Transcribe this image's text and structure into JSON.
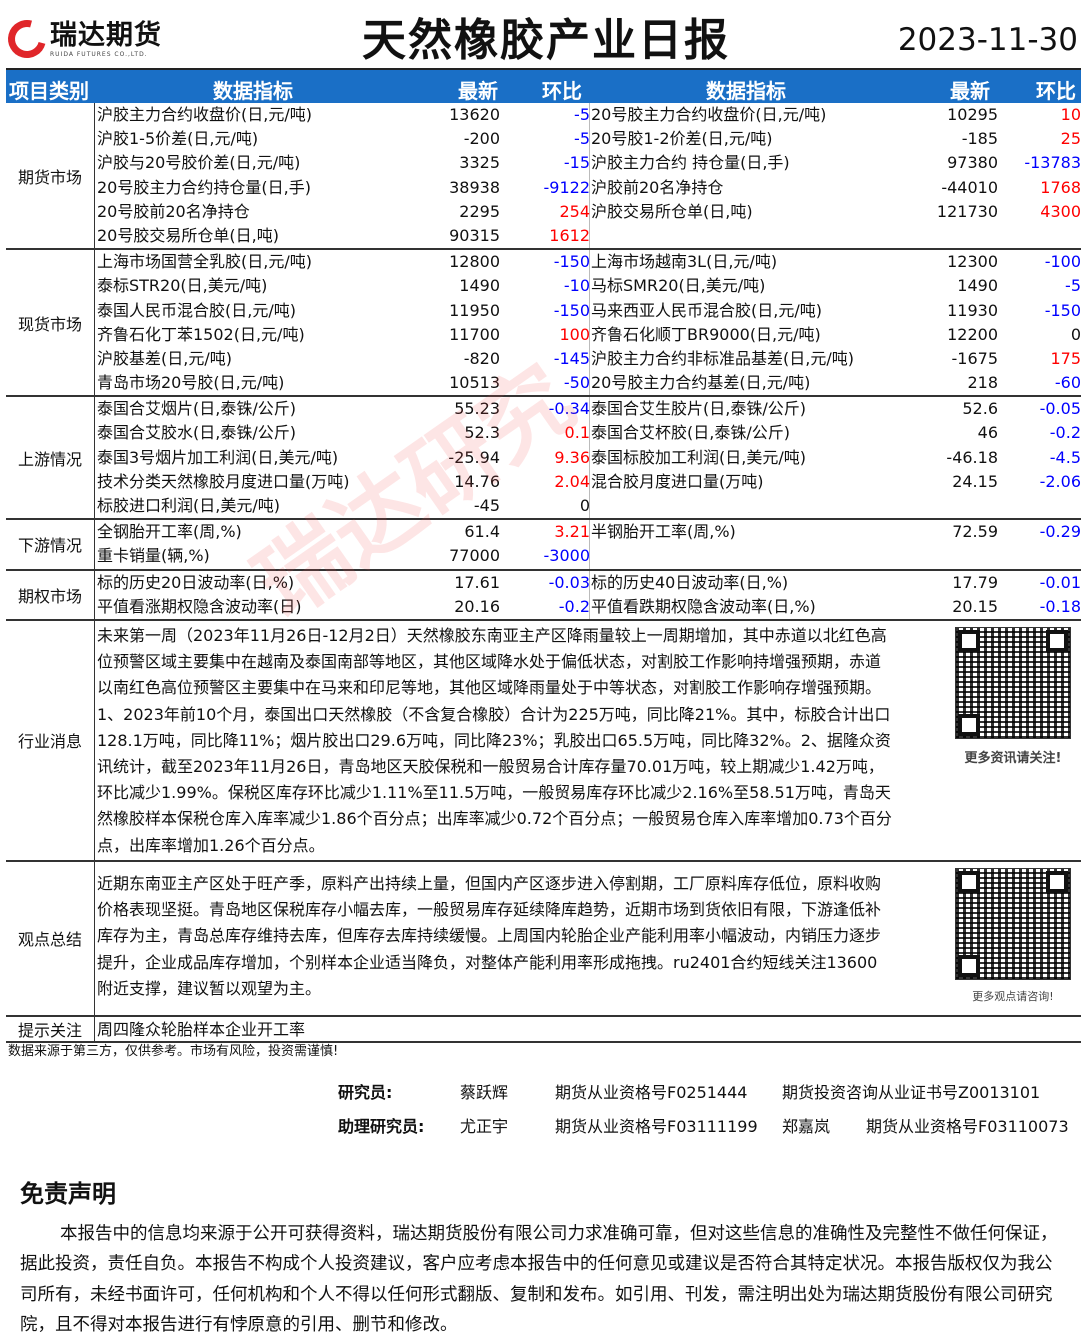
{
  "header": {
    "logo_cn": "瑞达期货",
    "logo_en": "RUIDA FUTURES CO.,LTD.",
    "title": "天然橡胶产业日报",
    "date": "2023-11-30"
  },
  "columns": {
    "category": "项目类别",
    "indicator": "数据指标",
    "latest": "最新",
    "change": "环比"
  },
  "colors": {
    "header_bg": "#1a6fc6",
    "up": "#ff0000",
    "down": "#0000ff"
  },
  "sections": [
    {
      "category": "期货市场",
      "rows": [
        [
          "沪胶主力合约收盘价(日,元/吨)",
          "13620",
          "-5",
          "20号胶主力合约收盘价(日,元/吨)",
          "10295",
          "10"
        ],
        [
          "沪胶1-5价差(日,元/吨)",
          "-200",
          "-5",
          "20号胶1-2价差(日,元/吨)",
          "-185",
          "25"
        ],
        [
          "沪胶与20号胶价差(日,元/吨)",
          "3325",
          "-15",
          "沪胶主力合约 持仓量(日,手)",
          "97380",
          "-13783"
        ],
        [
          "20号胶主力合约持仓量(日,手)",
          "38938",
          "-9122",
          "沪胶前20名净持仓",
          "-44010",
          "1768"
        ],
        [
          "20号胶前20名净持仓",
          "2295",
          "254",
          "沪胶交易所仓单(日,吨)",
          "121730",
          "4300"
        ],
        [
          "20号胶交易所仓单(日,吨)",
          "90315",
          "1612",
          "",
          "",
          ""
        ]
      ]
    },
    {
      "category": "现货市场",
      "rows": [
        [
          "上海市场国营全乳胶(日,元/吨)",
          "12800",
          "-150",
          "上海市场越南3L(日,元/吨)",
          "12300",
          "-100"
        ],
        [
          "泰标STR20(日,美元/吨)",
          "1490",
          "-10",
          "马标SMR20(日,美元/吨)",
          "1490",
          "-5"
        ],
        [
          "泰国人民币混合胶(日,元/吨)",
          "11950",
          "-150",
          "马来西亚人民币混合胶(日,元/吨)",
          "11930",
          "-150"
        ],
        [
          "齐鲁石化丁苯1502(日,元/吨)",
          "11700",
          "100",
          "齐鲁石化顺丁BR9000(日,元/吨)",
          "12200",
          "0"
        ],
        [
          "沪胶基差(日,元/吨)",
          "-820",
          "-145",
          "沪胶主力合约非标准品基差(日,元/吨)",
          "-1675",
          "175"
        ],
        [
          "青岛市场20号胶(日,元/吨)",
          "10513",
          "-50",
          "20号胶主力合约基差(日,元/吨)",
          "218",
          "-60"
        ]
      ]
    },
    {
      "category": "上游情况",
      "rows": [
        [
          "泰国合艾烟片(日,泰铢/公斤)",
          "55.23",
          "-0.34",
          "泰国合艾生胶片(日,泰铢/公斤)",
          "52.6",
          "-0.05"
        ],
        [
          "泰国合艾胶水(日,泰铢/公斤)",
          "52.3",
          "0.1",
          "泰国合艾杯胶(日,泰铢/公斤)",
          "46",
          "-0.2"
        ],
        [
          "泰国3号烟片加工利润(日,美元/吨)",
          "-25.94",
          "9.36",
          "泰国标胶加工利润(日,美元/吨)",
          "-46.18",
          "-4.5"
        ],
        [
          "技术分类天然橡胶月度进口量(万吨)",
          "14.76",
          "2.04",
          "混合胶月度进口量(万吨)",
          "24.15",
          "-2.06"
        ],
        [
          "标胶进口利润(日,美元/吨)",
          "-45",
          "0",
          "",
          "",
          ""
        ]
      ]
    },
    {
      "category": "下游情况",
      "rows": [
        [
          "全钢胎开工率(周,%)",
          "61.4",
          "3.21",
          "半钢胎开工率(周,%)",
          "72.59",
          "-0.29"
        ],
        [
          "重卡销量(辆,%)",
          "77000",
          "-3000",
          "",
          "",
          ""
        ]
      ]
    },
    {
      "category": "期权市场",
      "rows": [
        [
          "标的历史20日波动率(日,%)",
          "17.61",
          "-0.03",
          "标的历史40日波动率(日,%)",
          "17.79",
          "-0.01"
        ],
        [
          "平值看涨期权隐含波动率(日)",
          "20.16",
          "-0.2",
          "平值看跌期权隐含波动率(日,%)",
          "20.15",
          "-0.18"
        ]
      ]
    }
  ],
  "news": {
    "category": "行业消息",
    "text": "未来第一周（2023年11月26日-12月2日）天然橡胶东南亚主产区降雨量较上一周期增加，其中赤道以北红色高位预警区域主要集中在越南及泰国南部等地区，其他区域降水处于偏低状态，对割胶工作影响持增强预期，赤道以南红色高位预警区主要集中在马来和印尼等地，其他区域降雨量处于中等状态，对割胶工作影响存增强预期。1、2023年前10个月，泰国出口天然橡胶（不含复合橡胶）合计为225万吨，同比降21%。其中，标胶合计出口128.1万吨，同比降11%；烟片胶出口29.6万吨，同比降23%；乳胶出口65.5万吨，同比降32%。2、据隆众资讯统计，截至2023年11月26日，青岛地区天胶保税和一般贸易合计库存量70.01万吨，较上期减少1.42万吨，环比减少1.99%。保税区库存环比减少1.11%至11.5万吨，一般贸易库存环比减少2.16%至58.51万吨，青岛天然橡胶样本保税仓库入库率减少1.86个百分点；出库率减少0.72个百分点；一般贸易仓库入库率增加0.73个百分点，出库率增加1.26个百分点。",
    "qr_caption": "更多资讯请关注!"
  },
  "view": {
    "category": "观点总结",
    "text": "近期东南亚主产区处于旺产季，原料产出持续上量，但国内产区逐步进入停割期，工厂原料库存低位，原料收购价格表现坚挺。青岛地区保税库存小幅去库，一般贸易库存延续降库趋势，近期市场到货依旧有限，下游逢低补库存为主，青岛总库存维持去库，但库存去库持续缓慢。上周国内轮胎企业产能利用率小幅波动，内销压力逐步提升，企业成品库存增加，个别样本企业适当降负，对整体产能利用率形成拖拽。ru2401合约短线关注13600附近支撑，建议暂以观望为主。",
    "qr_caption": "更多观点请咨询!"
  },
  "tips": {
    "category": "提示关注",
    "text": "周四隆众轮胎样本企业开工率"
  },
  "source_note": "数据来源于第三方，仅供参考。市场有风险，投资需谨慎!",
  "staff": {
    "researcher_label": "研究员:",
    "researcher": "蔡跃辉",
    "researcher_cert": "期货从业资格号F0251444",
    "researcher_consult": "期货投资咨询从业证书号Z0013101",
    "assistant_label": "助理研究员:",
    "assistant1": "尤正宇",
    "assistant1_cert": "期货从业资格号F03111199",
    "assistant2": "郑嘉岚",
    "assistant2_cert": "期货从业资格号F03110073"
  },
  "disclaimer": {
    "title": "免责声明",
    "text": "本报告中的信息均来源于公开可获得资料，瑞达期货股份有限公司力求准确可靠，但对这些信息的准确性及完整性不做任何保证，据此投资，责任自负。本报告不构成个人投资建议，客户应考虑本报告中的任何意见或建议是否符合其特定状况。本报告版权仅为我公司所有，未经书面许可，任何机构和个人不得以任何形式翻版、复制和发布。如引用、刊发，需注明出处为瑞达期货股份有限公司研究院，且不得对本报告进行有悖原意的引用、删节和修改。"
  },
  "watermark": "瑞达研究"
}
